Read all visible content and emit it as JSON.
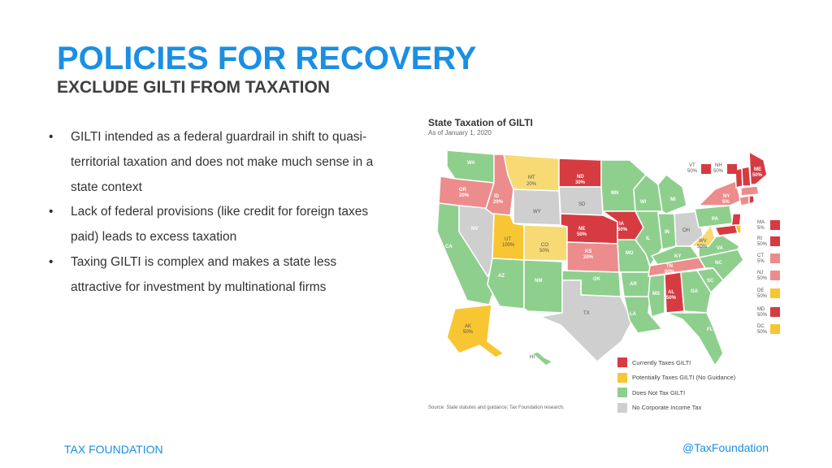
{
  "header": {
    "title": "POLICIES FOR RECOVERY",
    "subtitle": "EXCLUDE GILTI FROM TAXATION"
  },
  "bullets": [
    "GILTI intended as a federal guardrail in shift to quasi-territorial taxation and does not make much sense in a state context",
    "Lack of federal provisions (like credit for foreign taxes paid) leads to excess taxation",
    "Taxing GILTI is complex and makes a state less attractive for investment by multinational firms"
  ],
  "bullet_symbol": "•",
  "map": {
    "title": "State Taxation of GILTI",
    "date": "As of January 1, 2020",
    "source": "Source: State statutes and guidance; Tax Foundation research.",
    "colors": {
      "taxes": "#d63b41",
      "taxes_light": "#ec8c8c",
      "potential": "#f8c632",
      "potential_light": "#f7da74",
      "none": "#8fcf8e",
      "no_cit": "#cfcfcf"
    },
    "legend": [
      {
        "label": "Currently Taxes GILTI",
        "color": "#d63b41"
      },
      {
        "label": "Potentially Taxes GILTI (No Guidance)",
        "color": "#f8c632"
      },
      {
        "label": "Does Not Tax GILTI",
        "color": "#8fcf8e"
      },
      {
        "label": "No Corporate Income Tax",
        "color": "#cfcfcf"
      }
    ],
    "states": {
      "WA": "WA",
      "OR": "OR",
      "OR_pct": "20%",
      "CA": "CA",
      "NV": "NV",
      "ID": "ID",
      "ID_pct": "20%",
      "MT": "MT",
      "MT_pct": "20%",
      "WY": "WY",
      "UT": "UT",
      "UT_pct": "100%",
      "CO": "CO",
      "CO_pct": "50%",
      "AZ": "AZ",
      "NM": "NM",
      "ND": "ND",
      "ND_pct": "30%",
      "SD": "SD",
      "NE": "NE",
      "NE_pct": "50%",
      "KS": "KS",
      "KS_pct": "20%",
      "OK": "OK",
      "TX": "TX",
      "MN": "MN",
      "IA": "IA",
      "IA_pct": "50%",
      "MO": "MO",
      "AR": "AR",
      "LA": "LA",
      "WI": "WI",
      "IL": "IL",
      "MI": "MI",
      "IN": "IN",
      "OH": "OH",
      "KY": "KY",
      "TN": "TN",
      "TN_pct": "50%",
      "MS": "MS",
      "AL": "AL",
      "AL_pct": "50%",
      "GA": "GA",
      "FL": "FL",
      "SC": "SC",
      "NC": "NC",
      "VA": "VA",
      "WV": "WV",
      "WV_pct": "50%",
      "PA": "PA",
      "NY": "NY",
      "NY_pct": "5%",
      "ME": "ME",
      "ME_pct": "50%",
      "AK": "AK",
      "AK_pct": "50%",
      "HI": "HI"
    },
    "side_states": [
      {
        "abbr": "VT",
        "pct": "50%"
      },
      {
        "abbr": "NH",
        "pct": "50%"
      },
      {
        "abbr": "MA",
        "pct": "5%"
      },
      {
        "abbr": "RI",
        "pct": "50%"
      },
      {
        "abbr": "CT",
        "pct": "5%"
      },
      {
        "abbr": "NJ",
        "pct": "50%"
      },
      {
        "abbr": "DE",
        "pct": "50%"
      },
      {
        "abbr": "MD",
        "pct": "50%"
      },
      {
        "abbr": "DC",
        "pct": "50%"
      }
    ]
  },
  "footer": {
    "left": "TAX FOUNDATION",
    "right": "@TaxFoundation"
  }
}
